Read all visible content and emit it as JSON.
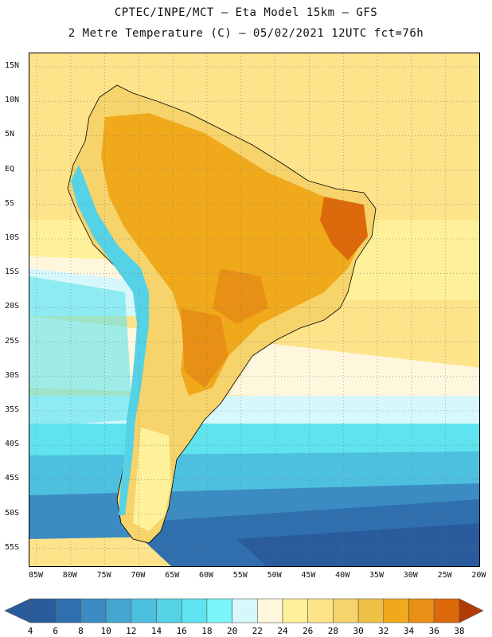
{
  "title": "CPTEC/INPE/MCT –  Eta Model 15km – GFS",
  "subtitle": "2 Metre Temperature (C) – 05/02/2021 12UTC fct=76h",
  "lat_labels": [
    "15N",
    "10N",
    "5N",
    "EQ",
    "5S",
    "10S",
    "15S",
    "20S",
    "25S",
    "30S",
    "35S",
    "40S",
    "45S",
    "50S",
    "55S"
  ],
  "lon_labels": [
    "85W",
    "80W",
    "75W",
    "70W",
    "65W",
    "60W",
    "55W",
    "50W",
    "45W",
    "40W",
    "35W",
    "30W",
    "25W",
    "20W"
  ],
  "colorbar": {
    "ticks": [
      "4",
      "6",
      "8",
      "10",
      "12",
      "14",
      "16",
      "18",
      "20",
      "22",
      "24",
      "26",
      "28",
      "30",
      "32",
      "34",
      "36",
      "38"
    ],
    "colors": [
      "#2a5b9c",
      "#2f6fae",
      "#3a8cc2",
      "#45a6d2",
      "#4ec0df",
      "#55d2e6",
      "#5fe3ee",
      "#7af5f8",
      "#d6f8fb",
      "#fff7dd",
      "#fff09a",
      "#fde38a",
      "#f6d36b",
      "#eec046",
      "#f0a91b",
      "#e88f16",
      "#dd6a0a",
      "#c84b06",
      "#b23a05"
    ],
    "low_arrow_color": "#2a5b9c",
    "high_arrow_color": "#b23a05"
  },
  "map_colors": {
    "ocean_warm": "#fde38a",
    "ocean_mild": "#fff09a",
    "ocean_cool": "#d6f8fb",
    "ocean_cyan": "#5fe3ee",
    "ocean_teal": "#45a6d2",
    "ocean_deep": "#2f6fae",
    "land_hot": "#e88f16",
    "land_warm": "#f0a91b",
    "land_mild": "#f6d36b",
    "andes": "#55d2e6",
    "patagonia": "#fff09a"
  }
}
